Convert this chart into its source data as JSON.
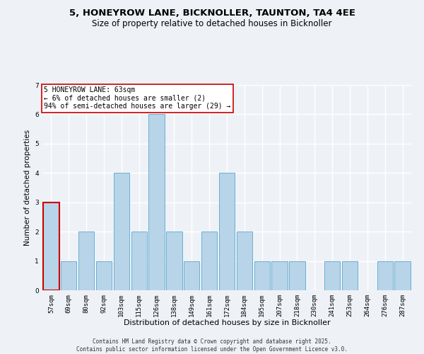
{
  "title": "5, HONEYROW LANE, BICKNOLLER, TAUNTON, TA4 4EE",
  "subtitle": "Size of property relative to detached houses in Bicknoller",
  "xlabel": "Distribution of detached houses by size in Bicknoller",
  "ylabel": "Number of detached properties",
  "categories": [
    "57sqm",
    "69sqm",
    "80sqm",
    "92sqm",
    "103sqm",
    "115sqm",
    "126sqm",
    "138sqm",
    "149sqm",
    "161sqm",
    "172sqm",
    "184sqm",
    "195sqm",
    "207sqm",
    "218sqm",
    "230sqm",
    "241sqm",
    "253sqm",
    "264sqm",
    "276sqm",
    "287sqm"
  ],
  "values": [
    3,
    1,
    2,
    1,
    4,
    2,
    6,
    2,
    1,
    2,
    4,
    2,
    1,
    1,
    1,
    0,
    1,
    1,
    0,
    1,
    1
  ],
  "bar_color": "#b8d4e8",
  "bar_edge_color": "#6aafd4",
  "highlight_index": 0,
  "highlight_edge_color": "#cc0000",
  "annotation_text": "5 HONEYROW LANE: 63sqm\n← 6% of detached houses are smaller (2)\n94% of semi-detached houses are larger (29) →",
  "ylim": [
    0,
    7
  ],
  "yticks": [
    0,
    1,
    2,
    3,
    4,
    5,
    6,
    7
  ],
  "background_color": "#eef2f7",
  "grid_color": "#ffffff",
  "footer": "Contains HM Land Registry data © Crown copyright and database right 2025.\nContains public sector information licensed under the Open Government Licence v3.0.",
  "title_fontsize": 9.5,
  "subtitle_fontsize": 8.5,
  "xlabel_fontsize": 8,
  "ylabel_fontsize": 7.5,
  "tick_fontsize": 6.5,
  "annotation_fontsize": 7,
  "footer_fontsize": 5.5
}
